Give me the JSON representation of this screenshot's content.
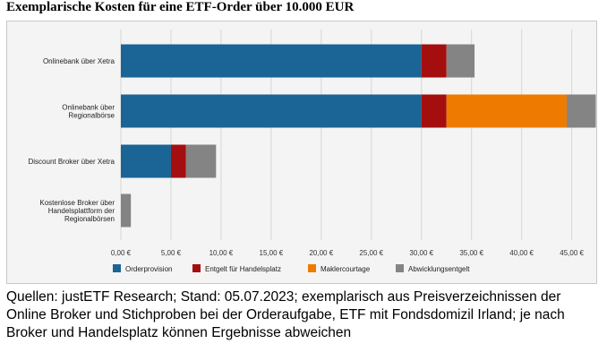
{
  "title": "Exemplarische Kosten für eine ETF-Order über 10.000 EUR",
  "caption": "Quellen: justETF Research; Stand: 05.07.2023; exemplarisch aus Preisverzeichnissen der Online Broker und Stichproben bei der Orderaufgabe, ETF mit Fondsdomizil Irland; je nach Broker und Handelsplatz können Ergebnisse abweichen",
  "chart_data": {
    "type": "bar",
    "orientation": "horizontal",
    "stacked": true,
    "title": "Exemplarische Kosten für eine ETF-Order über 10.000 EUR",
    "categories": [
      [
        "Onlinebank über Xetra"
      ],
      [
        "Onlinebank über",
        "Regionalbörse"
      ],
      [
        "Discount Broker über Xetra"
      ],
      [
        "Kostenlose Broker über",
        "Handelsplattform der",
        "Regionalbörsen"
      ]
    ],
    "series": [
      {
        "name": "Orderprovision",
        "color": "#1a6496",
        "values": [
          30.0,
          30.0,
          5.0,
          0.0
        ]
      },
      {
        "name": "Entgelt für Handelsplatz",
        "color": "#a50e0e",
        "values": [
          2.5,
          2.5,
          1.5,
          0.0
        ]
      },
      {
        "name": "Maklercourtage",
        "color": "#ee7b00",
        "values": [
          0.0,
          12.0,
          0.0,
          0.0
        ]
      },
      {
        "name": "Abwicklungsentgelt",
        "color": "#848484",
        "values": [
          2.8,
          2.9,
          3.0,
          1.0
        ]
      }
    ],
    "xlim": [
      0,
      47
    ],
    "xticks": [
      0,
      5,
      10,
      15,
      20,
      25,
      30,
      35,
      40,
      45
    ],
    "tick_labels": [
      "0,00 €",
      "5,00 €",
      "10,00 €",
      "15,00 €",
      "20,00 €",
      "25,00 €",
      "30,00 €",
      "35,00 €",
      "40,00 €",
      "45,00 €"
    ],
    "legend_position": "bottom",
    "grid": "vertical"
  }
}
